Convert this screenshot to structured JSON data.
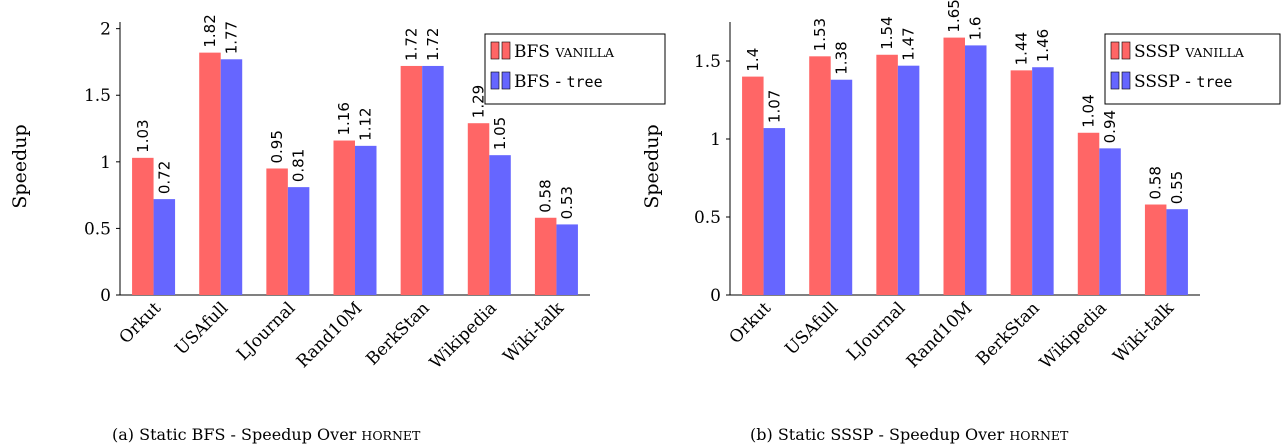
{
  "colors": {
    "series_a": "#ff6666",
    "series_b": "#6666ff",
    "axis": "#000000"
  },
  "chart_data": [
    {
      "type": "bar",
      "ylabel": "Speedup",
      "ylim": [
        0,
        2.05
      ],
      "yticks": [
        "0",
        "0.5",
        "1",
        "1.5",
        "2"
      ],
      "ytick_values": [
        0,
        0.5,
        1,
        1.5,
        2
      ],
      "categories": [
        "Orkut",
        "USAfull",
        "LJournal",
        "Rand10M",
        "BerkStan",
        "Wikipedia",
        "Wiki-talk"
      ],
      "series": [
        {
          "name": "BFS VANILLA",
          "name_main": "BFS ",
          "name_sc": "vanilla",
          "values": [
            1.03,
            1.82,
            0.95,
            1.16,
            1.72,
            1.29,
            0.58
          ],
          "labels": [
            "1.03",
            "1.82",
            "0.95",
            "1.16",
            "1.72",
            "1.29",
            "0.58"
          ]
        },
        {
          "name": "BFS - tree",
          "name_main": "BFS - ",
          "name_mono": "tree",
          "values": [
            0.72,
            1.77,
            0.81,
            1.12,
            1.72,
            1.05,
            0.53
          ],
          "labels": [
            "0.72",
            "1.77",
            "0.81",
            "1.12",
            "1.72",
            "1.05",
            "0.53"
          ]
        }
      ],
      "legend_position": "top-right",
      "caption": "(a) Static BFS - Speedup Over ",
      "caption_sc": "Hornet"
    },
    {
      "type": "bar",
      "ylabel": "Speedup",
      "ylim": [
        0,
        1.75
      ],
      "yticks": [
        "0",
        "0.5",
        "1",
        "1.5"
      ],
      "ytick_values": [
        0,
        0.5,
        1,
        1.5
      ],
      "categories": [
        "Orkut",
        "USAfull",
        "LJournal",
        "Rand10M",
        "BerkStan",
        "Wikipedia",
        "Wiki-talk"
      ],
      "series": [
        {
          "name": "SSSP VANILLA",
          "name_main": "SSSP ",
          "name_sc": "vanilla",
          "values": [
            1.4,
            1.53,
            1.54,
            1.65,
            1.44,
            1.04,
            0.58
          ],
          "labels": [
            "1.4",
            "1.53",
            "1.54",
            "1.65",
            "1.44",
            "1.04",
            "0.58"
          ]
        },
        {
          "name": "SSSP - tree",
          "name_main": "SSSP - ",
          "name_mono": "tree",
          "values": [
            1.07,
            1.38,
            1.47,
            1.6,
            1.46,
            0.94,
            0.55
          ],
          "labels": [
            "1.07",
            "1.38",
            "1.47",
            "1.6",
            "1.46",
            "0.94",
            "0.55"
          ]
        }
      ],
      "legend_position": "top-right",
      "caption": "(b) Static SSSP - Speedup Over ",
      "caption_sc": "Hornet"
    }
  ]
}
